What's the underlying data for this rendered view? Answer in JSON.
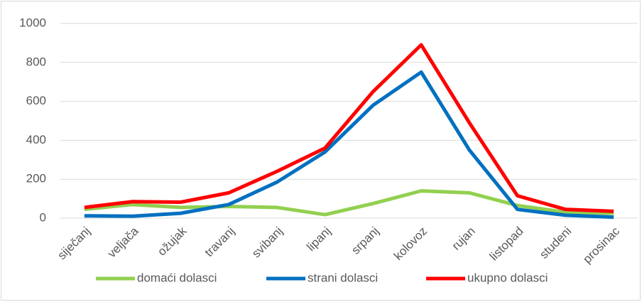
{
  "chart_data": {
    "type": "line",
    "categories": [
      "siječanj",
      "veljača",
      "ožujak",
      "travanj",
      "svibanj",
      "lipanj",
      "srpanj",
      "kolovoz",
      "rujan",
      "listopad",
      "studeni",
      "prosinac"
    ],
    "series": [
      {
        "name": "domaći dolasci",
        "color": "#92d050",
        "values": [
          45,
          70,
          55,
          60,
          55,
          18,
          75,
          140,
          130,
          65,
          30,
          25
        ]
      },
      {
        "name": "strani dolasci",
        "color": "#0070c0",
        "values": [
          12,
          10,
          25,
          70,
          185,
          340,
          580,
          750,
          350,
          45,
          15,
          5
        ]
      },
      {
        "name": "ukupno dolasci",
        "color": "#ff0000",
        "values": [
          55,
          85,
          82,
          130,
          240,
          360,
          650,
          890,
          490,
          115,
          45,
          35
        ]
      }
    ],
    "ylim": [
      0,
      1000
    ],
    "yticks": [
      0,
      200,
      400,
      600,
      800,
      1000
    ],
    "grid": true,
    "legend": "bottom"
  }
}
